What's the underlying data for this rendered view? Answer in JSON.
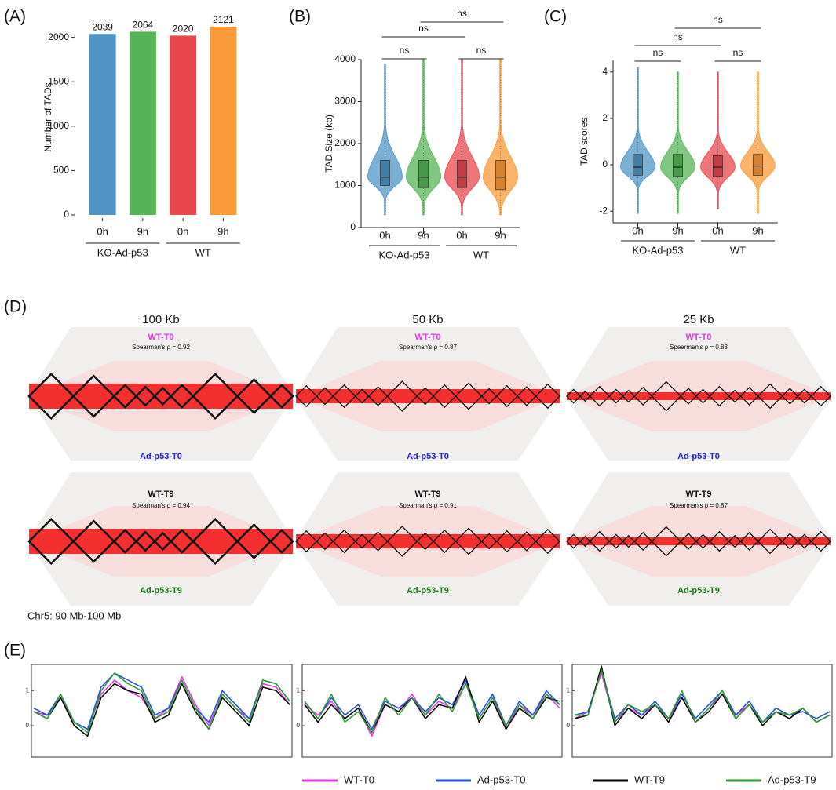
{
  "chart_data": [
    {
      "type": "bar",
      "title": "(A)",
      "y_label": "Number of TADs",
      "categories": [
        "0h",
        "9h",
        "0h",
        "9h"
      ],
      "groups": [
        "KO-Ad-p53",
        "WT"
      ],
      "values": [
        2039,
        2064,
        2020,
        2121
      ],
      "colors": [
        "#4f94c4",
        "#57b357",
        "#e8474e",
        "#f9993a"
      ],
      "ylim": [
        0,
        2200
      ],
      "yticks": [
        0,
        500,
        1000,
        1500,
        2000
      ]
    },
    {
      "type": "violin",
      "title": "(B)",
      "y_label": "TAD Size (kb)",
      "categories": [
        "0h",
        "9h",
        "0h",
        "9h"
      ],
      "groups": [
        "KO-Ad-p53",
        "WT"
      ],
      "values": [
        {
          "min": 300,
          "q1": 1000,
          "median": 1200,
          "q3": 1600,
          "max": 3900
        },
        {
          "min": 300,
          "q1": 950,
          "median": 1200,
          "q3": 1600,
          "max": 4000
        },
        {
          "min": 300,
          "q1": 950,
          "median": 1200,
          "q3": 1600,
          "max": 4000
        },
        {
          "min": 300,
          "q1": 900,
          "median": 1200,
          "q3": 1600,
          "max": 4000
        }
      ],
      "colors": [
        "#4f94c4",
        "#57b357",
        "#e8474e",
        "#f9993a"
      ],
      "annotations": [
        "ns",
        "ns",
        "ns",
        "ns"
      ],
      "ylim": [
        0,
        4000
      ],
      "yticks": [
        0,
        1000,
        2000,
        3000,
        4000
      ]
    },
    {
      "type": "violin",
      "title": "(C)",
      "y_label": "TAD scores",
      "categories": [
        "0h",
        "9h",
        "0h",
        "9h"
      ],
      "groups": [
        "KO-Ad-p53",
        "WT"
      ],
      "values": [
        {
          "min": -2.1,
          "q1": -0.45,
          "median": -0.1,
          "q3": 0.45,
          "max": 4.2
        },
        {
          "min": -2.1,
          "q1": -0.5,
          "median": -0.1,
          "q3": 0.45,
          "max": 4.0
        },
        {
          "min": -1.9,
          "q1": -0.5,
          "median": -0.1,
          "q3": 0.4,
          "max": 4.0
        },
        {
          "min": -2.1,
          "q1": -0.45,
          "median": -0.05,
          "q3": 0.45,
          "max": 4.0
        }
      ],
      "colors": [
        "#4f94c4",
        "#57b357",
        "#e8474e",
        "#f9993a"
      ],
      "annotations": [
        "ns",
        "ns",
        "ns",
        "ns"
      ],
      "ylim": [
        -2.5,
        4.5
      ],
      "yticks": [
        -2,
        0,
        2,
        4
      ]
    },
    {
      "type": "line",
      "title": "(E)",
      "ylim": [
        -0.9,
        1.75
      ],
      "yticks": [
        0,
        1
      ],
      "series": [
        {
          "name": "WT-T0",
          "color": "#e633e6",
          "values": [
            [
              0.4,
              0.3,
              0.8,
              0.1,
              -0.1,
              0.9,
              1.3,
              1.0,
              0.8,
              0.2,
              0.5,
              1.4,
              0.6,
              0.0,
              0.9,
              0.5,
              0.2,
              1.2,
              1.1,
              0.6
            ],
            [
              0.6,
              0.3,
              0.7,
              0.2,
              0.5,
              -0.3,
              0.6,
              0.4,
              0.9,
              0.3,
              0.7,
              0.5,
              1.2,
              0.2,
              0.8,
              -0.1,
              0.6,
              0.3,
              0.9,
              0.5
            ],
            [
              0.2,
              0.4,
              1.5,
              0.1,
              0.5,
              0.3,
              0.6,
              0.2,
              0.8,
              0.1,
              0.5,
              0.9,
              0.3,
              0.6,
              0.1,
              0.4,
              0.2,
              0.5,
              0.1,
              0.3
            ]
          ]
        },
        {
          "name": "Ad-p53-T0",
          "color": "#1f4fe0",
          "values": [
            [
              0.5,
              0.3,
              0.9,
              0.1,
              -0.1,
              1.1,
              1.5,
              1.3,
              1.1,
              0.3,
              0.5,
              1.3,
              0.5,
              0.1,
              1.0,
              0.6,
              0.2,
              1.3,
              1.2,
              0.7
            ],
            [
              0.7,
              0.2,
              0.8,
              0.3,
              0.6,
              -0.1,
              0.7,
              0.5,
              0.8,
              0.4,
              0.8,
              0.6,
              1.3,
              0.3,
              0.9,
              0.0,
              0.7,
              0.3,
              1.0,
              0.6
            ],
            [
              0.3,
              0.4,
              1.6,
              0.2,
              0.6,
              0.3,
              0.7,
              0.2,
              0.9,
              0.2,
              0.6,
              1.0,
              0.3,
              0.7,
              0.1,
              0.5,
              0.3,
              0.4,
              0.2,
              0.4
            ]
          ]
        },
        {
          "name": "WT-T9",
          "color": "#000000",
          "values": [
            [
              0.4,
              0.2,
              0.8,
              0.0,
              -0.3,
              0.8,
              1.2,
              1.0,
              0.9,
              0.1,
              0.3,
              1.2,
              0.4,
              -0.1,
              0.8,
              0.4,
              0.0,
              1.1,
              1.0,
              0.6
            ],
            [
              0.6,
              0.1,
              0.6,
              0.2,
              0.5,
              -0.2,
              0.6,
              0.4,
              0.8,
              0.2,
              0.6,
              0.5,
              1.4,
              0.1,
              0.7,
              -0.1,
              0.5,
              0.2,
              0.8,
              0.7
            ],
            [
              0.2,
              0.3,
              1.7,
              0.0,
              0.5,
              0.2,
              0.6,
              0.1,
              0.8,
              0.1,
              0.4,
              0.9,
              0.2,
              0.6,
              0.0,
              0.4,
              0.2,
              0.5,
              0.1,
              0.3
            ]
          ]
        },
        {
          "name": "Ad-p53-T9",
          "color": "#2e9a2e",
          "values": [
            [
              0.4,
              0.2,
              0.9,
              0.1,
              -0.2,
              1.0,
              1.5,
              1.2,
              1.0,
              0.2,
              0.4,
              1.3,
              0.5,
              -0.1,
              0.9,
              0.5,
              0.1,
              1.3,
              1.2,
              0.7
            ],
            [
              0.7,
              0.2,
              0.9,
              0.1,
              0.4,
              -0.2,
              0.8,
              0.3,
              0.8,
              0.3,
              0.9,
              0.4,
              1.2,
              0.2,
              0.8,
              0.0,
              0.6,
              0.2,
              0.9,
              0.6
            ],
            [
              0.3,
              0.3,
              1.6,
              0.1,
              0.6,
              0.4,
              0.6,
              0.2,
              1.0,
              0.1,
              0.5,
              1.0,
              0.2,
              0.6,
              0.1,
              0.4,
              0.3,
              0.5,
              0.1,
              0.3
            ]
          ]
        }
      ]
    }
  ],
  "panel_d": {
    "label": "(D)",
    "resolutions": [
      "100 Kb",
      "50 Kb",
      "25 Kb"
    ],
    "rows": [
      {
        "top": "WT-T0",
        "bottom": "Ad-p53-T0",
        "spearman": [
          "Spearman's ρ = 0.92",
          "Spearman's ρ = 0.87",
          "Spearman's ρ = 0.83"
        ]
      },
      {
        "top": "WT-T9",
        "bottom": "Ad-p53-T9",
        "spearman": [
          "Spearman's ρ = 0.94",
          "Spearman's ρ = 0.91",
          "Spearman's ρ = 0.87"
        ]
      }
    ],
    "region": "Chr5: 90 Mb-100 Mb"
  }
}
